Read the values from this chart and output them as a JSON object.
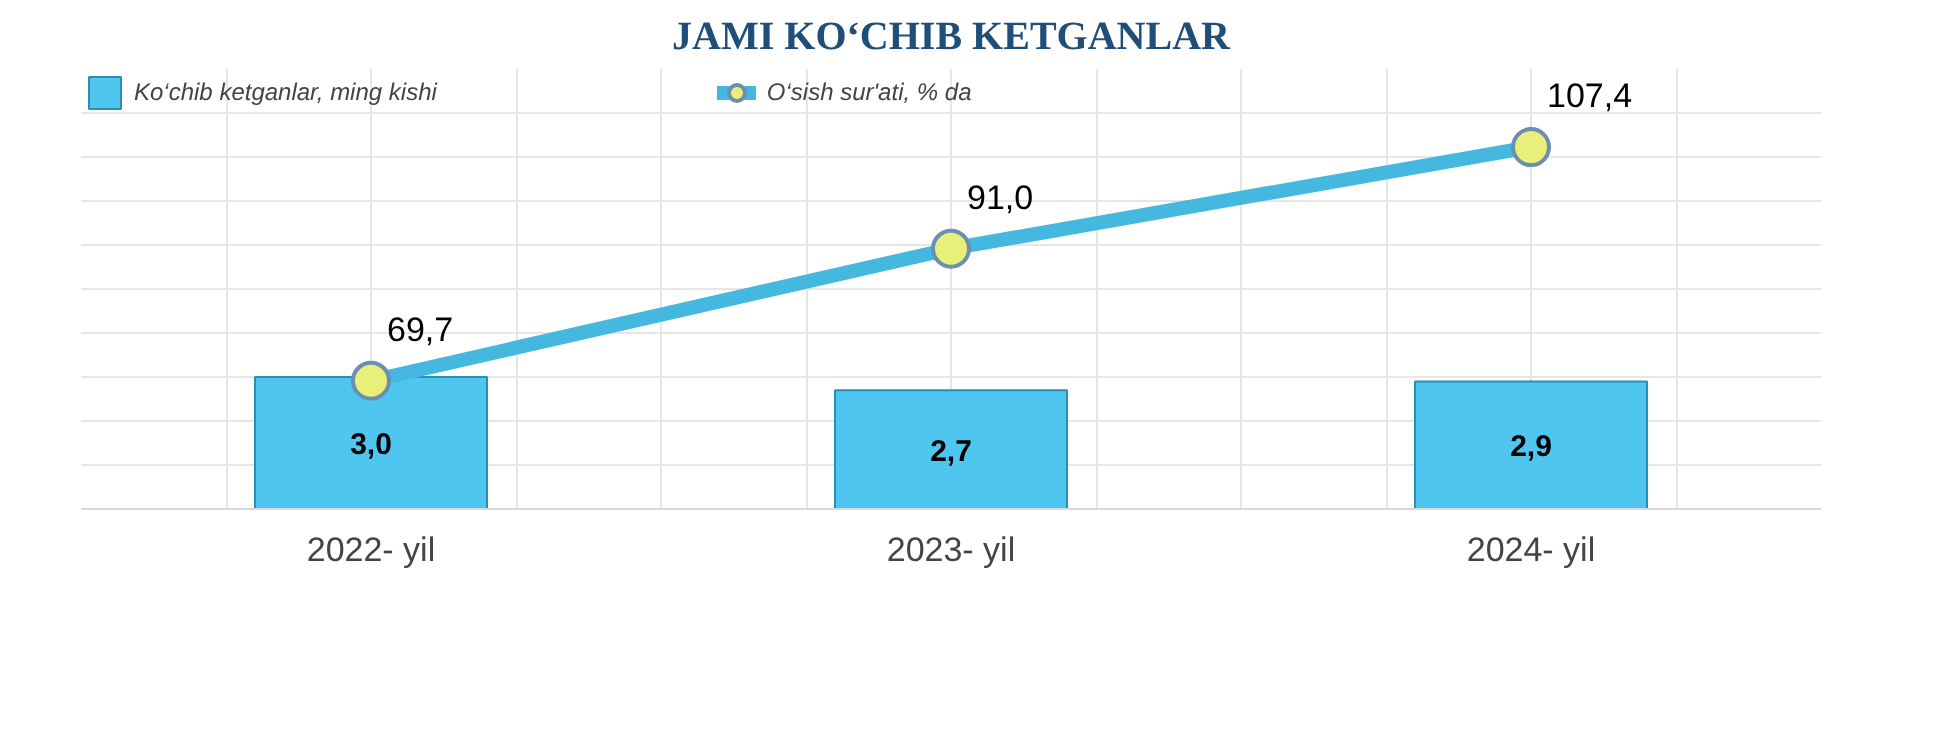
{
  "chart_data": {
    "type": "bar",
    "title": "JAMI KO‘CHIB KETGANLAR",
    "categories": [
      "2022- yil",
      "2023- yil",
      "2024- yil"
    ],
    "series": [
      {
        "name": "Ko‘chib ketganlar, ming kishi",
        "color": "#4fc6f0",
        "values": [
          3.0,
          2.7,
          2.9
        ],
        "value_labels": [
          "3,0",
          "2,7",
          "2,9"
        ]
      },
      {
        "name": "O‘sish sur'ati, % da",
        "type": "line",
        "axis": "y2",
        "color": "#45b8e0",
        "values": [
          69.7,
          91.0,
          107.4
        ],
        "value_labels": [
          "69,7",
          "91,0",
          "107,4"
        ]
      }
    ],
    "ylim": [
      0,
      10
    ],
    "y2lim": [
      49,
      120
    ],
    "grid": true,
    "legend": "top left",
    "marker": "circle",
    "tick_labels": "x"
  }
}
